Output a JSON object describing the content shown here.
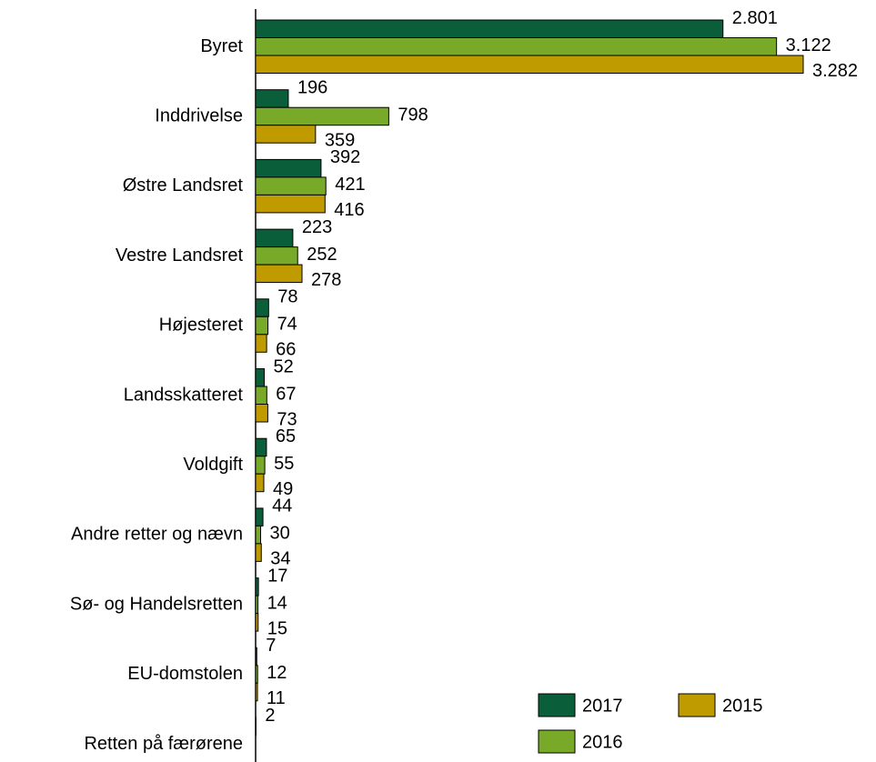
{
  "chart_data": {
    "type": "bar",
    "orientation": "horizontal",
    "categories": [
      "Byret",
      "Inddrivelse",
      "Østre Landsret",
      "Vestre Landsret",
      "Højesteret",
      "Landsskatteret",
      "Voldgift",
      "Andre retter og nævn",
      "Sø- og Handelsretten",
      "EU-domstolen",
      "Retten på færørene"
    ],
    "series": [
      {
        "name": "2017",
        "color": "#0b5e3a",
        "values": [
          2801,
          196,
          392,
          223,
          78,
          52,
          65,
          44,
          17,
          7,
          2
        ],
        "value_labels": [
          "2.801",
          "196",
          "392",
          "223",
          "78",
          "52",
          "65",
          "44",
          "17",
          "7",
          "2"
        ]
      },
      {
        "name": "2016",
        "color": "#78a928",
        "values": [
          3122,
          798,
          421,
          252,
          74,
          67,
          55,
          30,
          14,
          12,
          null
        ],
        "value_labels": [
          "3.122",
          "798",
          "421",
          "252",
          "74",
          "67",
          "55",
          "30",
          "14",
          "12",
          null
        ]
      },
      {
        "name": "2015",
        "color": "#bf9b00",
        "values": [
          3282,
          359,
          416,
          278,
          66,
          73,
          49,
          34,
          15,
          11,
          null
        ],
        "value_labels": [
          "3.282",
          "359",
          "416",
          "278",
          "66",
          "73",
          "49",
          "34",
          "15",
          "11",
          null
        ]
      }
    ],
    "legend": "bottom-right"
  }
}
